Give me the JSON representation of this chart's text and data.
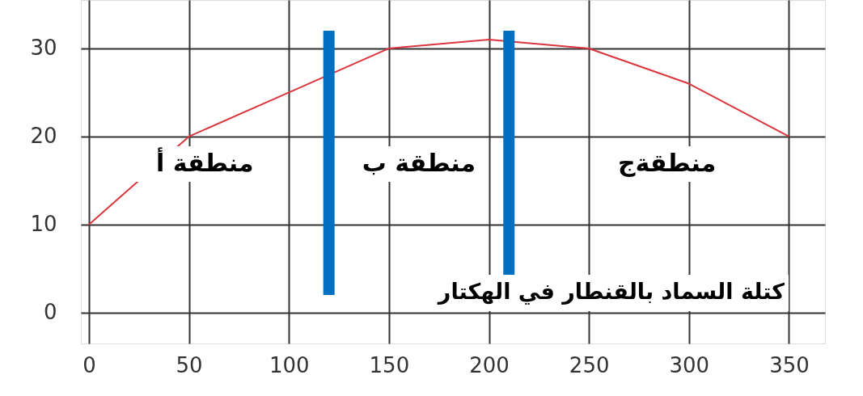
{
  "chart_data": {
    "type": "line",
    "xlabel": "كتلة السماد بالقنطار في الهكتار",
    "x": [
      0,
      50,
      100,
      150,
      200,
      250,
      300,
      350
    ],
    "series": [
      {
        "color": "#d9363e",
        "values": [
          10,
          20,
          25,
          30,
          31,
          30,
          26,
          20
        ]
      }
    ],
    "xlim": [
      -4,
      368
    ],
    "ylim": [
      -3.5,
      35.5
    ],
    "xticks": [
      0,
      50,
      100,
      150,
      200,
      250,
      300,
      350
    ],
    "yticks": [
      0,
      10,
      20,
      30
    ],
    "grid": true,
    "marker": "none",
    "line_style": "solid",
    "ref_lines": [
      {
        "axis": "x",
        "value": 120,
        "color": "#0070c0"
      },
      {
        "axis": "x",
        "value": 210,
        "color": "#0070c0"
      }
    ],
    "annotations": [
      "منطقة أ",
      "منطقة ب",
      "منطقةج"
    ]
  }
}
